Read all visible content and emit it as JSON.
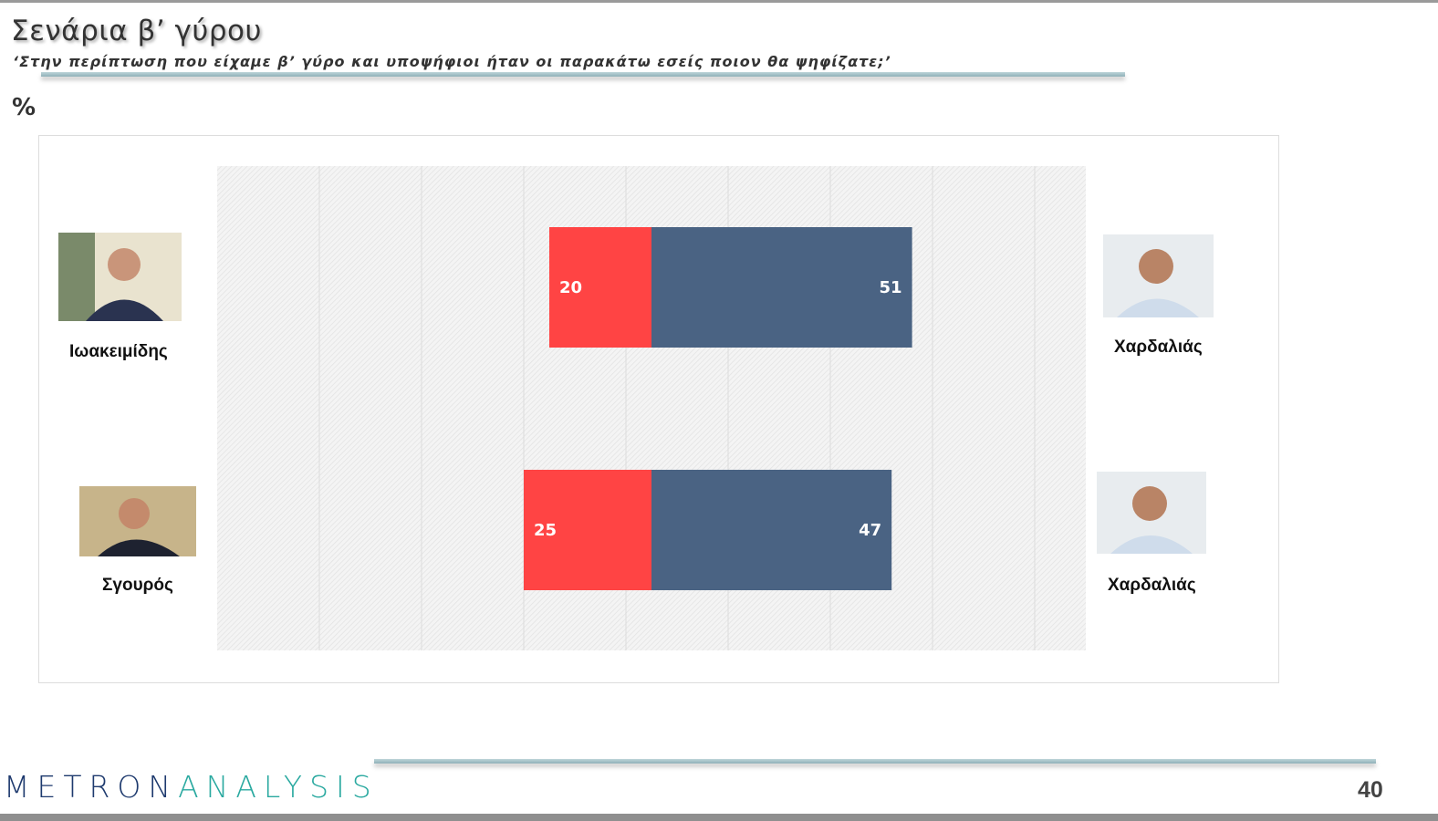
{
  "header": {
    "title": "Σενάρια β’ γύρου",
    "subtitle": "‘Στην περίπτωση που είχαμε β’ γύρο και υποψήφιοι ήταν οι παρακάτω εσείς ποιον θα ψηφίζατε;’",
    "unit": "%"
  },
  "chart_data": {
    "type": "bar",
    "orientation": "horizontal-diverging-stacked",
    "xlim": [
      -85,
      85
    ],
    "grid": true,
    "rows": [
      {
        "left_candidate": "Ιωακειμίδης",
        "right_candidate": "Χαρδαλιάς",
        "left_value": 20,
        "right_value": 51
      },
      {
        "left_candidate": "Σγουρός",
        "right_candidate": "Χαρδαλιάς",
        "left_value": 25,
        "right_value": 47
      }
    ],
    "colors": {
      "left": "#ff4444",
      "right": "#4a6383"
    }
  },
  "footer": {
    "logo_part1": "METRON",
    "logo_part2": "ANALYSIS",
    "page_number": "40"
  }
}
